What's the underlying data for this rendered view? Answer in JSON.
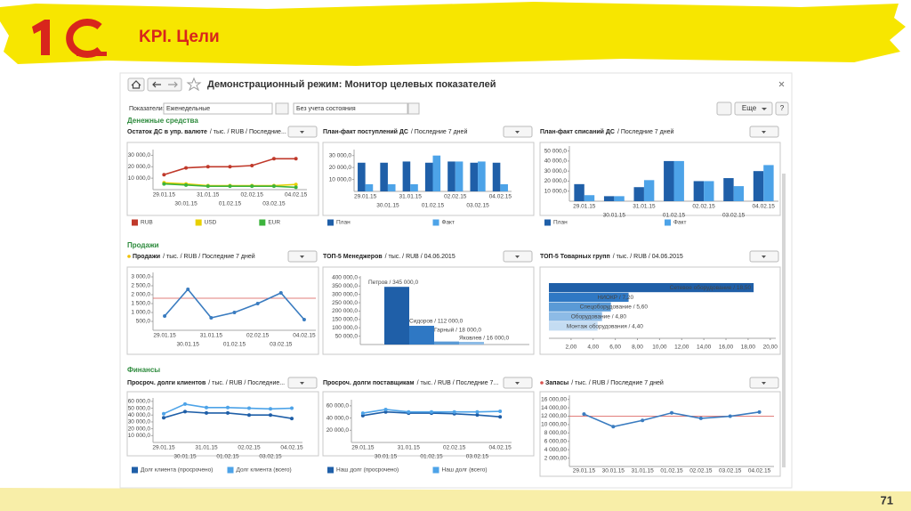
{
  "slide": {
    "title": "KPI. Цели",
    "page_number": "71"
  },
  "window": {
    "title": "Демонстрационный режим: Монитор целевых показателей",
    "filter_label": "Показатели:",
    "period": "Еженедельные",
    "state": "Без учета состояния",
    "more_button": "Еще",
    "help_button": "?"
  },
  "sections": [
    "Денежные средства",
    "Продажи",
    "Финансы"
  ],
  "chart_data": [
    {
      "type": "line",
      "title": "Остаток ДС в упр. валюте",
      "subtitle": "/ тыс. / RUB / Последние...",
      "categories": [
        "29.01.15",
        "30.01.15",
        "31.01.15",
        "01.02.15",
        "02.02.15",
        "03.02.15",
        "04.02.15"
      ],
      "series": [
        {
          "name": "RUB",
          "color": "#c0392b",
          "values": [
            13000,
            19000,
            20000,
            20000,
            21000,
            27000,
            27000
          ]
        },
        {
          "name": "USD",
          "color": "#e8d000",
          "values": [
            6000,
            5000,
            3500,
            3500,
            3500,
            3500,
            4500
          ]
        },
        {
          "name": "EUR",
          "color": "#3cb33c",
          "values": [
            5000,
            4000,
            3000,
            3000,
            3000,
            3000,
            2000
          ]
        }
      ],
      "ylim": [
        0,
        35000
      ],
      "yticks": [
        {
          "value": 10000,
          "label": "10 000,0"
        },
        {
          "value": 20000,
          "label": "20 000,0"
        },
        {
          "value": 30000,
          "label": "30 000,0"
        }
      ]
    },
    {
      "type": "bar",
      "title": "План-факт поступлений ДС",
      "subtitle": "/ Последние 7 дней",
      "categories": [
        "29.01.15",
        "30.01.15",
        "31.01.15",
        "01.02.15",
        "02.02.15",
        "03.02.15",
        "04.02.15"
      ],
      "series": [
        {
          "name": "План",
          "color": "#1f5fa8",
          "values": [
            24000,
            24000,
            25000,
            24000,
            25000,
            24000,
            24000
          ]
        },
        {
          "name": "Факт",
          "color": "#4da3e8",
          "values": [
            6000,
            6000,
            6000,
            30000,
            25000,
            25000,
            6000
          ]
        }
      ],
      "ylim": [
        0,
        35000
      ],
      "yticks": [
        {
          "value": 10000,
          "label": "10 000,0"
        },
        {
          "value": 20000,
          "label": "20 000,0"
        },
        {
          "value": 30000,
          "label": "30 000,0"
        }
      ]
    },
    {
      "type": "bar",
      "title": "План-факт списаний ДС",
      "subtitle": "/ Последние 7 дней",
      "categories": [
        "29.01.15",
        "30.01.15",
        "31.01.15",
        "01.02.15",
        "02.02.15",
        "03.02.15",
        "04.02.15"
      ],
      "series": [
        {
          "name": "План",
          "color": "#1f5fa8",
          "values": [
            17000,
            5000,
            14000,
            40000,
            20000,
            23000,
            30000
          ]
        },
        {
          "name": "Факт",
          "color": "#4da3e8",
          "values": [
            6000,
            5000,
            21000,
            40000,
            20000,
            15000,
            36000
          ]
        }
      ],
      "ylim": [
        0,
        55000
      ],
      "yticks": [
        {
          "value": 10000,
          "label": "10 000,0"
        },
        {
          "value": 20000,
          "label": "20 000,0"
        },
        {
          "value": 30000,
          "label": "30 000,0"
        },
        {
          "value": 40000,
          "label": "40 000,0"
        },
        {
          "value": 50000,
          "label": "50 000,0"
        }
      ]
    },
    {
      "type": "line",
      "title": "Продажи",
      "subtitle": "/ тыс. / RUB / Последние 7 дней",
      "categories": [
        "29.01.15",
        "30.01.15",
        "31.01.15",
        "01.02.15",
        "02.02.15",
        "03.02.15",
        "04.02.15"
      ],
      "values": [
        800,
        2300,
        700,
        1000,
        1500,
        2100,
        600
      ],
      "color": "#3a7cc0",
      "target": 1800,
      "target_color": "#d9534f",
      "ylim": [
        0,
        3250
      ],
      "yticks": [
        {
          "value": 500,
          "label": "500,0"
        },
        {
          "value": 1000,
          "label": "1 000,0"
        },
        {
          "value": 1500,
          "label": "1 500,0"
        },
        {
          "value": 2000,
          "label": "2 000,0"
        },
        {
          "value": 2500,
          "label": "2 500,0"
        },
        {
          "value": 3000,
          "label": "3 000,0"
        }
      ]
    },
    {
      "type": "bar",
      "title": "ТОП-5 Менеджеров",
      "subtitle": "/ тыс. / RUB / 04.06.2015",
      "values": [
        345000,
        112000,
        18000,
        16000
      ],
      "value_labels": [
        "Петров / 345 000,0",
        "Сидоров / 112 000,0",
        "Гарный / 18 000,0",
        "Яковлев / 16 000,0"
      ],
      "colors": [
        "#1f5fa8",
        "#2f78c4",
        "#5a9ad6",
        "#8dbbe6"
      ],
      "ylim": [
        0,
        410000
      ],
      "yticks": [
        {
          "value": 50000,
          "label": "50 000,0"
        },
        {
          "value": 100000,
          "label": "100 000,0"
        },
        {
          "value": 150000,
          "label": "150 000,0"
        },
        {
          "value": 200000,
          "label": "200 000,0"
        },
        {
          "value": 250000,
          "label": "250 000,0"
        },
        {
          "value": 300000,
          "label": "300 000,0"
        },
        {
          "value": 350000,
          "label": "350 000,0"
        },
        {
          "value": 400000,
          "label": "400 000,0"
        }
      ]
    },
    {
      "type": "barh",
      "title": "ТОП-5 Товарных групп",
      "subtitle": "/ тыс. / RUB / 04.06.2015",
      "values": [
        18.5,
        7.2,
        5.6,
        4.8,
        4.4
      ],
      "value_labels": [
        "Сетевое оборудование / 18,50",
        "НИОКР / 7,20",
        "Спецоборудование / 5,60",
        "Оборудование / 4,80",
        "Монтаж оборудования / 4,40"
      ],
      "colors": [
        "#1f5fa8",
        "#2f78c4",
        "#5a9ad6",
        "#8dbbe6",
        "#c4dcf2"
      ],
      "xlim": [
        0,
        20.5
      ],
      "xticks": [
        {
          "value": 2,
          "label": "2,00"
        },
        {
          "value": 4,
          "label": "4,00"
        },
        {
          "value": 6,
          "label": "6,00"
        },
        {
          "value": 8,
          "label": "8,00"
        },
        {
          "value": 10,
          "label": "10,00"
        },
        {
          "value": 12,
          "label": "12,00"
        },
        {
          "value": 14,
          "label": "14,00"
        },
        {
          "value": 16,
          "label": "16,00"
        },
        {
          "value": 18,
          "label": "18,00"
        },
        {
          "value": 20,
          "label": "20,00"
        }
      ]
    },
    {
      "type": "line",
      "title": "Просроч. долги клиентов",
      "subtitle": "/ тыс. / RUB / Последние...",
      "categories": [
        "29.01.15",
        "30.01.15",
        "31.01.15",
        "01.02.15",
        "02.02.15",
        "03.02.15",
        "04.02.15"
      ],
      "series": [
        {
          "name": "Долг клиента (просрочено)",
          "color": "#1f5fa8",
          "values": [
            36000,
            45000,
            43000,
            43000,
            40000,
            40000,
            35000
          ]
        },
        {
          "name": "Долг клиента (всего)",
          "color": "#4da3e8",
          "values": [
            42000,
            56000,
            51000,
            51000,
            50000,
            49000,
            50000
          ]
        }
      ],
      "ylim": [
        0,
        65000
      ],
      "yticks": [
        {
          "value": 10000,
          "label": "10 000,0"
        },
        {
          "value": 20000,
          "label": "20 000,0"
        },
        {
          "value": 30000,
          "label": "30 000,0"
        },
        {
          "value": 40000,
          "label": "40 000,0"
        },
        {
          "value": 50000,
          "label": "50 000,0"
        },
        {
          "value": 60000,
          "label": "60 000,0"
        }
      ]
    },
    {
      "type": "line",
      "title": "Просроч. долги поставщикам",
      "subtitle": "/ тыс. / RUB / Последние 7...",
      "categories": [
        "29.01.15",
        "30.01.15",
        "31.01.15",
        "01.02.15",
        "02.02.15",
        "03.02.15",
        "04.02.15"
      ],
      "series": [
        {
          "name": "Наш долг (просрочено)",
          "color": "#1f5fa8",
          "values": [
            44000,
            50000,
            48000,
            48000,
            47000,
            45000,
            42000
          ]
        },
        {
          "name": "Наш долг (всего)",
          "color": "#4da3e8",
          "values": [
            48000,
            54000,
            50000,
            50000,
            50000,
            50000,
            51000
          ]
        }
      ],
      "ylim": [
        0,
        70000
      ],
      "yticks": [
        {
          "value": 20000,
          "label": "20 000,0"
        },
        {
          "value": 40000,
          "label": "40 000,0"
        },
        {
          "value": 60000,
          "label": "60 000,0"
        }
      ]
    },
    {
      "type": "line",
      "title": "Запасы",
      "subtitle": "/ тыс. / RUB / Последние 7 дней",
      "categories": [
        "29.01.15",
        "30.01.15",
        "31.01.15",
        "01.02.15",
        "02.02.15",
        "03.02.15",
        "04.02.15"
      ],
      "values": [
        12500,
        9500,
        11000,
        12800,
        11500,
        12000,
        13000
      ],
      "color": "#3a7cc0",
      "target": 12000,
      "target_color": "#d9534f",
      "ylim": [
        0,
        17000
      ],
      "yticks": [
        {
          "value": 2000,
          "label": "2 000,00"
        },
        {
          "value": 4000,
          "label": "4 000,00"
        },
        {
          "value": 6000,
          "label": "6 000,00"
        },
        {
          "value": 8000,
          "label": "8 000,00"
        },
        {
          "value": 10000,
          "label": "10 000,00"
        },
        {
          "value": 12000,
          "label": "12 000,00"
        },
        {
          "value": 14000,
          "label": "14 000,00"
        },
        {
          "value": 16000,
          "label": "16 000,00"
        }
      ]
    }
  ]
}
